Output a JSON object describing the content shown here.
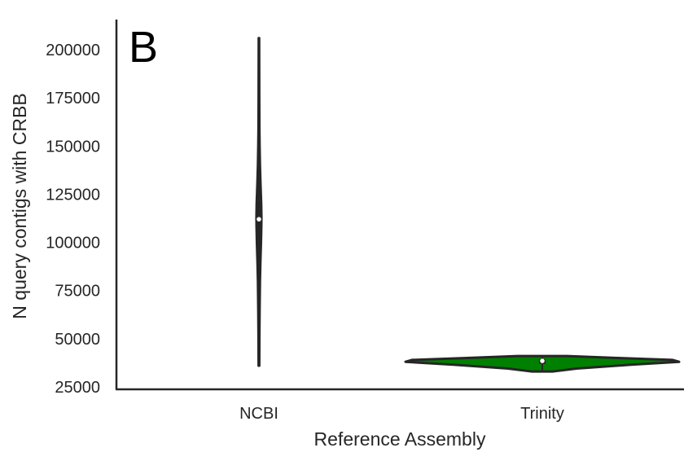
{
  "chart_data": {
    "type": "violin",
    "panel_label": "B",
    "xlabel": "Reference Assembly",
    "ylabel": "N query contigs with CRBB",
    "categories": [
      "NCBI",
      "Trinity"
    ],
    "ylim": [
      25000,
      215000
    ],
    "yticks": [
      25000,
      50000,
      75000,
      100000,
      125000,
      150000,
      175000,
      200000
    ],
    "grid": false,
    "fill_color": "#008000",
    "edge_color": "#262626",
    "violins": [
      {
        "category": "NCBI",
        "min": 36000,
        "max": 206000,
        "q1": 100000,
        "median": 112000,
        "q3": 121000,
        "density": [
          [
            36000,
            0.03
          ],
          [
            50000,
            0.04
          ],
          [
            65000,
            0.06
          ],
          [
            80000,
            0.09
          ],
          [
            90000,
            0.13
          ],
          [
            100000,
            0.18
          ],
          [
            108000,
            0.21
          ],
          [
            113000,
            0.22
          ],
          [
            120000,
            0.2
          ],
          [
            130000,
            0.14
          ],
          [
            140000,
            0.09
          ],
          [
            150000,
            0.06
          ],
          [
            160000,
            0.04
          ],
          [
            175000,
            0.03
          ],
          [
            190000,
            0.025
          ],
          [
            206000,
            0.02
          ]
        ]
      },
      {
        "category": "Trinity",
        "min": 33000,
        "max": 41000,
        "q1": 37000,
        "median": 38500,
        "q3": 39500,
        "density": [
          [
            33000,
            0.08
          ],
          [
            34500,
            0.25
          ],
          [
            36500,
            0.65
          ],
          [
            38000,
            1.0
          ],
          [
            39000,
            0.95
          ],
          [
            40000,
            0.55
          ],
          [
            41000,
            0.18
          ]
        ]
      }
    ]
  }
}
